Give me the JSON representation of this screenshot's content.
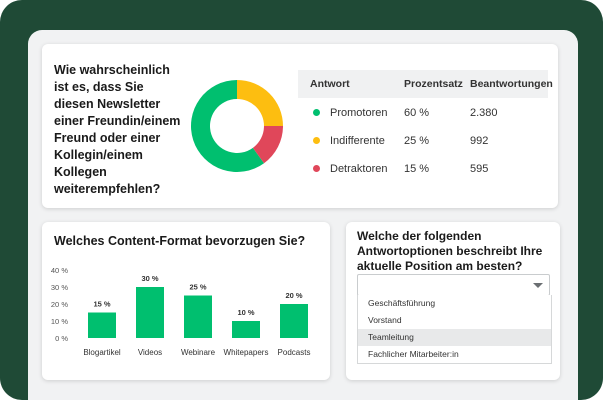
{
  "chart_data": [
    {
      "type": "pie",
      "title": "Wie wahrscheinlich ist es, dass Sie diesen Newsletter einer Freundin/einem Freund oder einer Kollegin/einem Kollegen weiterempfehlen?",
      "categories": [
        "Promotoren",
        "Indifferente",
        "Detraktoren"
      ],
      "values": [
        60,
        25,
        15
      ],
      "value_labels": [
        "60 %",
        "25 %",
        "15 %"
      ],
      "colors": [
        "#00bf6f",
        "#fdbe10",
        "#e0475a"
      ],
      "table": {
        "headers": [
          "Antwort",
          "Prozentsatz",
          "Beantwortungen"
        ],
        "counts": [
          "2.380",
          "992",
          "595"
        ]
      }
    },
    {
      "type": "bar",
      "title": "Welches Content-Format bevorzugen Sie?",
      "categories": [
        "Blogartikel",
        "Videos",
        "Webinare",
        "Whitepapers",
        "Podcasts"
      ],
      "values": [
        15,
        30,
        25,
        10,
        20
      ],
      "value_labels": [
        "15 %",
        "30 %",
        "25 %",
        "10 %",
        "20 %"
      ],
      "color": "#00bf6f",
      "ylim": [
        0,
        40
      ],
      "yticks": [
        {
          "value": 0,
          "label": "0 %"
        },
        {
          "value": 10,
          "label": "10 %"
        },
        {
          "value": 20,
          "label": "20 %"
        },
        {
          "value": 30,
          "label": "30 %"
        },
        {
          "value": 40,
          "label": "40 %"
        }
      ]
    }
  ],
  "dropdown": {
    "question": "Welche der folgenden Antwortoptionen beschreibt Ihre aktuelle Position am besten?",
    "options": [
      "Geschäftsführung",
      "Vorstand",
      "Teamleitung",
      "Fachlicher Mitarbeiter:in"
    ],
    "highlighted": 2
  }
}
